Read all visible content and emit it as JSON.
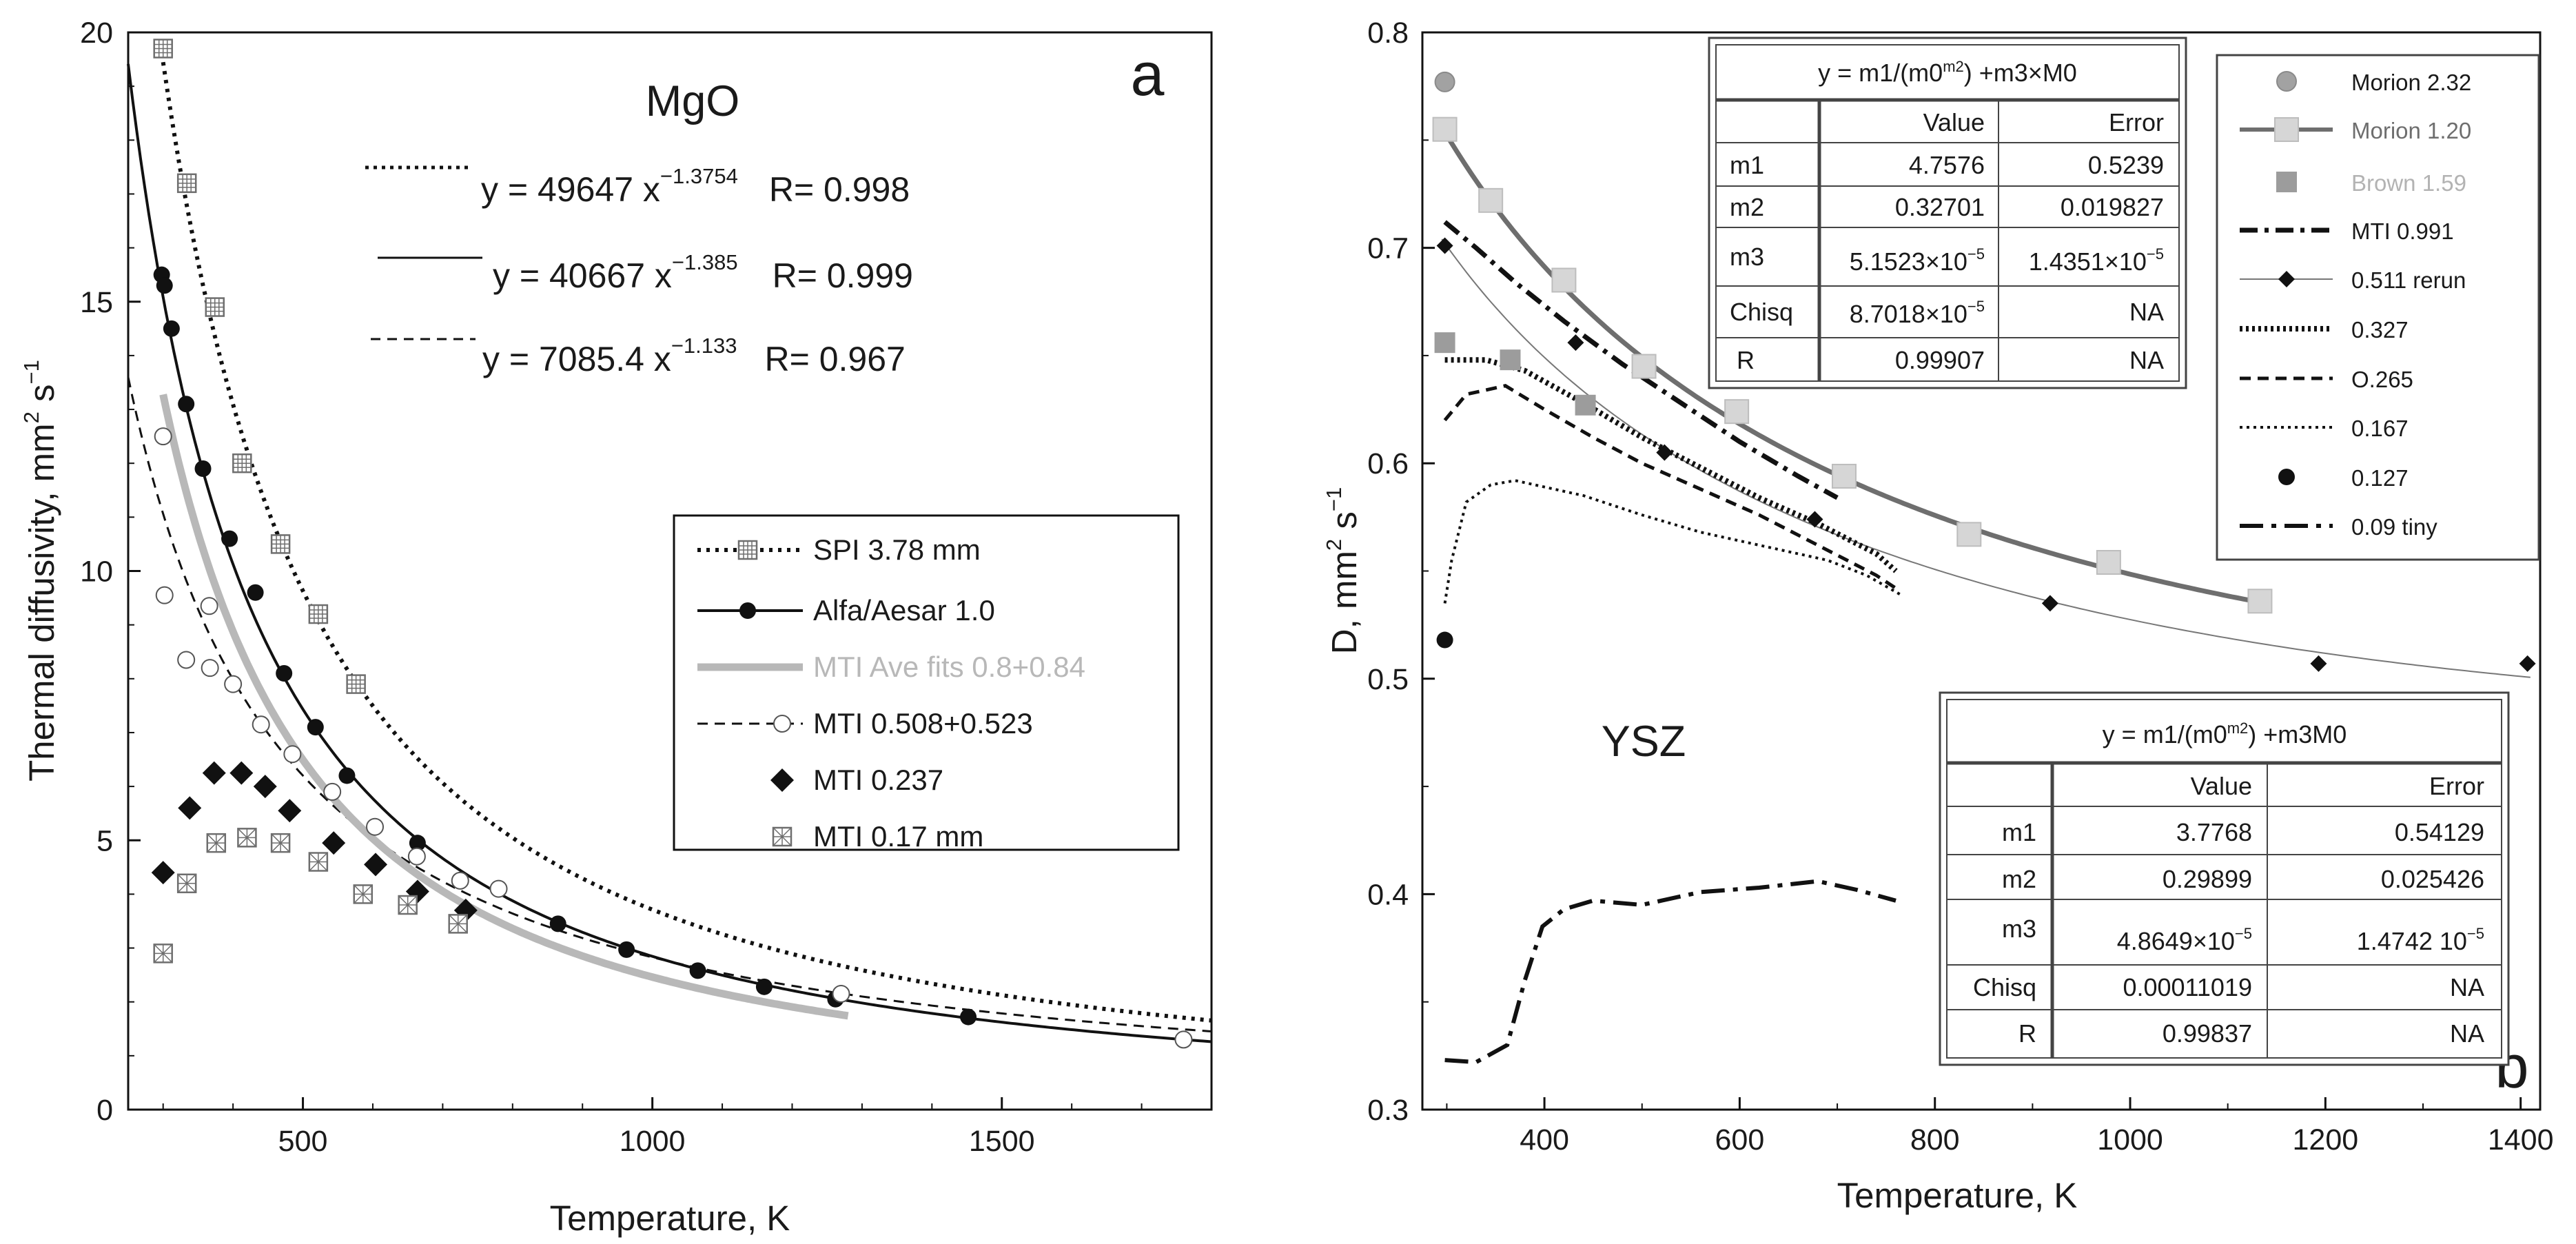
{
  "colors": {
    "black": "#111111",
    "gray": "#b8b8b8",
    "dark_gray": "#6e6e6e",
    "light_gray": "#cfcfcf",
    "mid_gray": "#a2a2a2",
    "brown_label": "#b3b3b3"
  },
  "chart_data": [
    {
      "panel": "a",
      "type": "scatter",
      "title": "MgO",
      "xlabel": "Temperature, K",
      "ylabel": "Thermal diffusivity, mm2 s-1",
      "ylabel_main": "Thermal diffusivity, mm",
      "ylabel_mid": " s",
      "ylabel_sup1": "2",
      "ylabel_sup2": "−1",
      "xlim": [
        250,
        1800
      ],
      "ylim": [
        0,
        20
      ],
      "xticks": [
        500,
        1000,
        1500
      ],
      "yticks": [
        0,
        5,
        10,
        15,
        20
      ],
      "equations": [
        {
          "text": "y = 49647  x",
          "exp": "−1.3754",
          "r": "R= 0.998",
          "style": "dotted"
        },
        {
          "text": "y = 40667 x",
          "exp": "−1.385",
          "r": "R= 0.999",
          "style": "solid"
        },
        {
          "text": "y = 7085.4 x",
          "exp": "−1.133",
          "r": "R= 0.967",
          "style": "dashed"
        }
      ],
      "fits": [
        {
          "name": "fit-spi",
          "a": 49647,
          "b": -1.3754,
          "xrange": [
            300,
            1800
          ],
          "style": "dotted"
        },
        {
          "name": "fit-alfa",
          "a": 40667,
          "b": -1.385,
          "xrange": [
            250,
            1800
          ],
          "style": "solid"
        },
        {
          "name": "fit-mti",
          "a": 7085.4,
          "b": -1.133,
          "xrange": [
            250,
            1800
          ],
          "style": "dashed"
        },
        {
          "name": "fit-mti-ave",
          "a": 39000,
          "b": -1.4,
          "xrange": [
            300,
            1280
          ],
          "style": "gray"
        }
      ],
      "series": [
        {
          "name": "SPI 3.78 mm",
          "marker": "boxplus",
          "x": [
            300,
            334,
            374,
            413,
            468,
            522,
            576
          ],
          "y": [
            19.7,
            17.2,
            14.9,
            12.0,
            10.5,
            9.2,
            7.9
          ]
        },
        {
          "name": "Alfa/Aesar 1.0",
          "marker": "filled-circle",
          "x": [
            298,
            302,
            312,
            333,
            357,
            395,
            432,
            473,
            518,
            563,
            664,
            865,
            963,
            1065,
            1160,
            1262,
            1452
          ],
          "y": [
            15.5,
            15.3,
            14.5,
            13.1,
            11.9,
            10.6,
            9.6,
            8.1,
            7.1,
            6.2,
            4.95,
            3.45,
            2.97,
            2.58,
            2.28,
            2.05,
            1.72
          ]
        },
        {
          "name": "MTI Ave fits 0.8+0.84",
          "marker": "gray-line"
        },
        {
          "name": "MTI 0.508+0.523",
          "marker": "open-circle",
          "x": [
            300,
            302,
            333,
            366,
            367,
            400,
            440,
            485,
            542,
            603,
            663,
            725,
            780,
            1270,
            1760
          ],
          "y": [
            12.5,
            9.55,
            8.35,
            9.35,
            8.2,
            7.9,
            7.15,
            6.6,
            5.9,
            5.25,
            4.7,
            4.25,
            4.1,
            2.15,
            1.3
          ]
        },
        {
          "name": "MTI 0.237",
          "marker": "diamond",
          "x": [
            300,
            338,
            373,
            412,
            446,
            481,
            544,
            604,
            664,
            733
          ],
          "y": [
            4.4,
            5.6,
            6.25,
            6.25,
            6.0,
            5.55,
            4.95,
            4.55,
            4.05,
            3.7
          ]
        },
        {
          "name": "MTI 0.17 mm",
          "marker": "boxx",
          "x": [
            300,
            334,
            376,
            420,
            468,
            522,
            586,
            650,
            722
          ],
          "y": [
            2.9,
            4.2,
            4.95,
            5.05,
            4.95,
            4.6,
            4.0,
            3.8,
            3.45
          ]
        }
      ]
    },
    {
      "panel": "b",
      "type": "line",
      "title": "YSZ",
      "xlabel": "Temperature, K",
      "ylabel": "D, mm2 s-1",
      "ylabel_main": "D, mm",
      "ylabel_mid": " s",
      "ylabel_sup1": "2",
      "ylabel_sup2": "−1",
      "xlim": [
        275,
        1420
      ],
      "ylim": [
        0.3,
        0.8
      ],
      "xticks": [
        400,
        600,
        800,
        1000,
        1200,
        1400
      ],
      "yticks": [
        0.3,
        0.4,
        0.5,
        0.6,
        0.7,
        0.8
      ],
      "fits": [
        {
          "name": "fit-morion",
          "m1": 4.7576,
          "m2": 0.32701,
          "m3": 5.1523e-05,
          "xrange": [
            295,
            1135
          ],
          "style": "dark"
        },
        {
          "name": "fit-0511",
          "m1": 3.7768,
          "m2": 0.29899,
          "m3": 4.8649e-05,
          "xrange": [
            295,
            1410
          ],
          "style": "thin"
        }
      ],
      "series": [
        {
          "name": "Morion 2.32",
          "marker": "circle-lightgray",
          "x": [
            298
          ],
          "y": [
            0.777
          ]
        },
        {
          "name": "Morion 1.20",
          "marker": "square-light",
          "x": [
            298,
            345,
            420,
            502,
            597,
            707,
            835,
            978,
            1133
          ],
          "y": [
            0.755,
            0.722,
            0.685,
            0.645,
            0.624,
            0.594,
            0.567,
            0.554,
            0.536
          ]
        },
        {
          "name": "Brown 1.59",
          "marker": "square-gray",
          "x": [
            298,
            365,
            442
          ],
          "y": [
            0.656,
            0.648,
            0.627
          ]
        },
        {
          "name": "MTI 0.991",
          "marker": "dashdot",
          "x": [
            298,
            330,
            370,
            420,
            480,
            540,
            600,
            660,
            700
          ],
          "y": [
            0.712,
            0.7,
            0.684,
            0.666,
            0.646,
            0.628,
            0.61,
            0.594,
            0.584
          ]
        },
        {
          "name": "0.511 rerun",
          "marker": "diamond-small",
          "x": [
            298,
            432,
            523,
            677,
            918,
            1193,
            1407
          ],
          "y": [
            0.701,
            0.656,
            0.605,
            0.574,
            0.535,
            0.507,
            0.507
          ]
        },
        {
          "name": "0.327",
          "marker": "heavy-dot",
          "x": [
            298,
            340,
            380,
            440,
            500,
            560,
            620,
            680,
            740,
            760
          ],
          "y": [
            0.648,
            0.648,
            0.643,
            0.628,
            0.612,
            0.598,
            0.584,
            0.572,
            0.558,
            0.55
          ]
        },
        {
          "name": "O.265",
          "marker": "dash",
          "x": [
            298,
            320,
            360,
            400,
            450,
            500,
            560,
            620,
            680,
            740,
            760
          ],
          "y": [
            0.62,
            0.632,
            0.636,
            0.625,
            0.612,
            0.6,
            0.588,
            0.576,
            0.562,
            0.548,
            0.542
          ]
        },
        {
          "name": "0.167",
          "marker": "dot",
          "x": [
            298,
            305,
            320,
            345,
            370,
            400,
            440,
            500,
            560,
            620,
            690,
            730,
            765
          ],
          "y": [
            0.535,
            0.555,
            0.582,
            0.59,
            0.592,
            0.589,
            0.585,
            0.576,
            0.568,
            0.562,
            0.555,
            0.548,
            0.539
          ]
        },
        {
          "name": "0.127",
          "marker": "circle-black",
          "x": [
            298
          ],
          "y": [
            0.518
          ]
        },
        {
          "name": "0.09 tiny",
          "marker": "longdash-dot",
          "x": [
            298,
            330,
            362,
            380,
            398,
            420,
            450,
            500,
            560,
            620,
            680,
            720,
            760
          ],
          "y": [
            0.323,
            0.322,
            0.33,
            0.36,
            0.385,
            0.393,
            0.397,
            0.395,
            0.401,
            0.403,
            0.406,
            0.402,
            0.397
          ]
        }
      ],
      "tables": [
        {
          "name": "table-morion",
          "equation": "y = m1/(m0^m2) +m3×M0",
          "eq_main": "y = m1/(m0",
          "eq_sup": "m2",
          "eq_tail": ") +m3×M0",
          "header": [
            "",
            "Value",
            "Error"
          ],
          "rows": [
            {
              "label": "m1",
              "value": "4.7576",
              "error": "0.5239"
            },
            {
              "label": "m2",
              "value": "0.32701",
              "error": "0.019827"
            },
            {
              "label": "m3",
              "value_mant": "5.1523×10",
              "value_exp": "−5",
              "error_mant": "1.4351×10",
              "error_exp": "−5"
            },
            {
              "label": "Chisq",
              "value_mant": "8.7018×10",
              "value_exp": "−5",
              "error": "NA"
            },
            {
              "label": "R",
              "value": "0.99907",
              "error": "NA"
            }
          ]
        },
        {
          "name": "table-0511",
          "equation": "y = m1/(m0^m2) +m3M0",
          "eq_main": "y = m1/(m0",
          "eq_sup": "m2",
          "eq_tail": ") +m3M0",
          "header": [
            "",
            "Value",
            "Error"
          ],
          "rows": [
            {
              "label": "m1",
              "value": "3.7768",
              "error": "0.54129"
            },
            {
              "label": "m2",
              "value": "0.29899",
              "error": "0.025426"
            },
            {
              "label": "m3",
              "value_mant": "4.8649×10",
              "value_exp": "−5",
              "error_mant": "1.4742  10",
              "error_exp": "−5"
            },
            {
              "label": "Chisq",
              "value": "0.00011019",
              "error": "NA"
            },
            {
              "label": "R",
              "value": "0.99837",
              "error": "NA"
            }
          ]
        }
      ]
    }
  ]
}
